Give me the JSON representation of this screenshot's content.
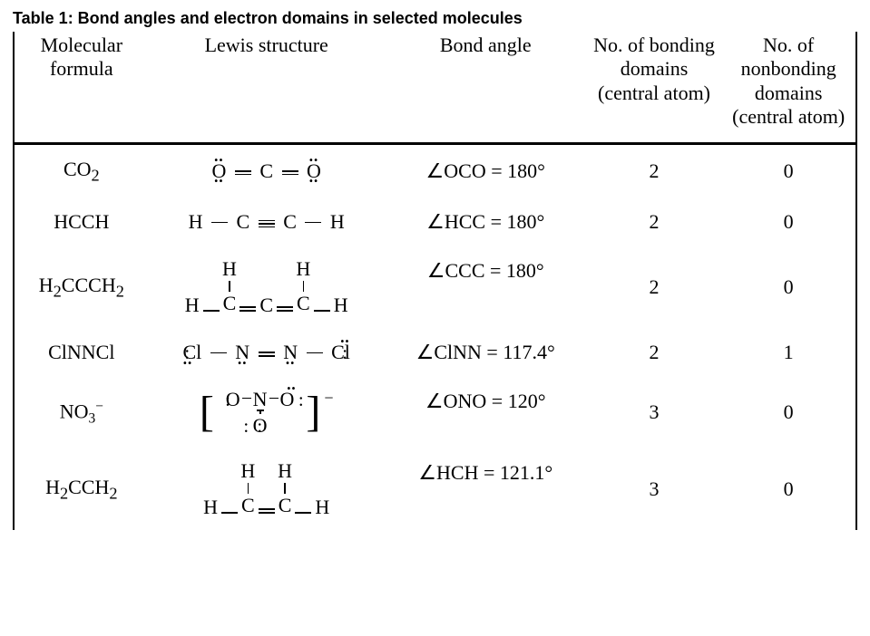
{
  "title": "Table 1: Bond angles and electron domains in selected molecules",
  "headers": {
    "formula": "Molecular formula",
    "lewis": "Lewis structure",
    "angle": "Bond angle",
    "bd": "No. of bonding domains (central atom)",
    "nbd": "No. of nonbonding domains (central atom)"
  },
  "rows": [
    {
      "formula_html": "CO<sub>2</sub>",
      "angle": "∠OCO = 180°",
      "bd": "2",
      "nbd": "0"
    },
    {
      "formula_html": "HCCH",
      "angle": "∠HCC = 180°",
      "bd": "2",
      "nbd": "0"
    },
    {
      "formula_html": "H<sub>2</sub>CCCH<sub>2</sub>",
      "angle": "∠CCC = 180°",
      "bd": "2",
      "nbd": "0"
    },
    {
      "formula_html": "ClNNCl",
      "angle": "∠ClNN = 117.4°",
      "bd": "2",
      "nbd": "1"
    },
    {
      "formula_html": "NO<sub style='font-size:0.7em'>3</sub><sup style='font-size:0.7em'>−</sup>",
      "angle": "∠ONO = 120°",
      "bd": "3",
      "nbd": "0"
    },
    {
      "formula_html": "H<sub>2</sub>CCH<sub>2</sub>",
      "angle": "∠HCH = 121.1°",
      "bd": "3",
      "nbd": "0"
    }
  ]
}
